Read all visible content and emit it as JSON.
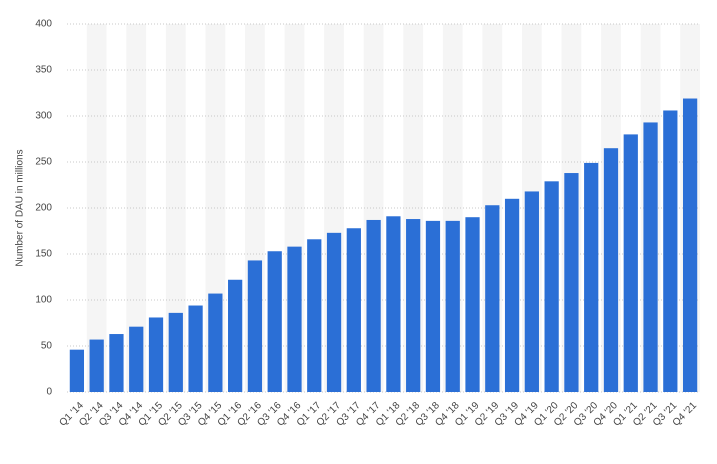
{
  "chart_data": {
    "type": "bar",
    "y_label": "Number of DAU in millions",
    "categories": [
      "Q1 '14",
      "Q2 '14",
      "Q3 '14",
      "Q4 '14",
      "Q1 '15",
      "Q2 '15",
      "Q3 '15",
      "Q4 '15",
      "Q1 '16",
      "Q2 '16",
      "Q3 '16",
      "Q4 '16",
      "Q1 '17",
      "Q2 '17",
      "Q3 '17",
      "Q4 '17",
      "Q1 '18",
      "Q2 '18",
      "Q3 '18",
      "Q4 '18",
      "Q1 '19",
      "Q2 '19",
      "Q3 '19",
      "Q4 '19",
      "Q1 '20",
      "Q2 '20",
      "Q3 '20",
      "Q4 '20",
      "Q1 '21",
      "Q2 '21",
      "Q3 '21",
      "Q4 '21"
    ],
    "values": [
      46,
      57,
      63,
      71,
      81,
      86,
      94,
      107,
      122,
      143,
      153,
      158,
      166,
      173,
      178,
      187,
      191,
      188,
      186,
      186,
      190,
      203,
      210,
      218,
      229,
      238,
      249,
      265,
      280,
      293,
      306,
      319
    ],
    "color": "#2b6fd6",
    "ylim": [
      0,
      400
    ],
    "yticks": [
      0,
      50,
      100,
      150,
      200,
      250,
      300,
      350,
      400
    ],
    "grid": true
  }
}
